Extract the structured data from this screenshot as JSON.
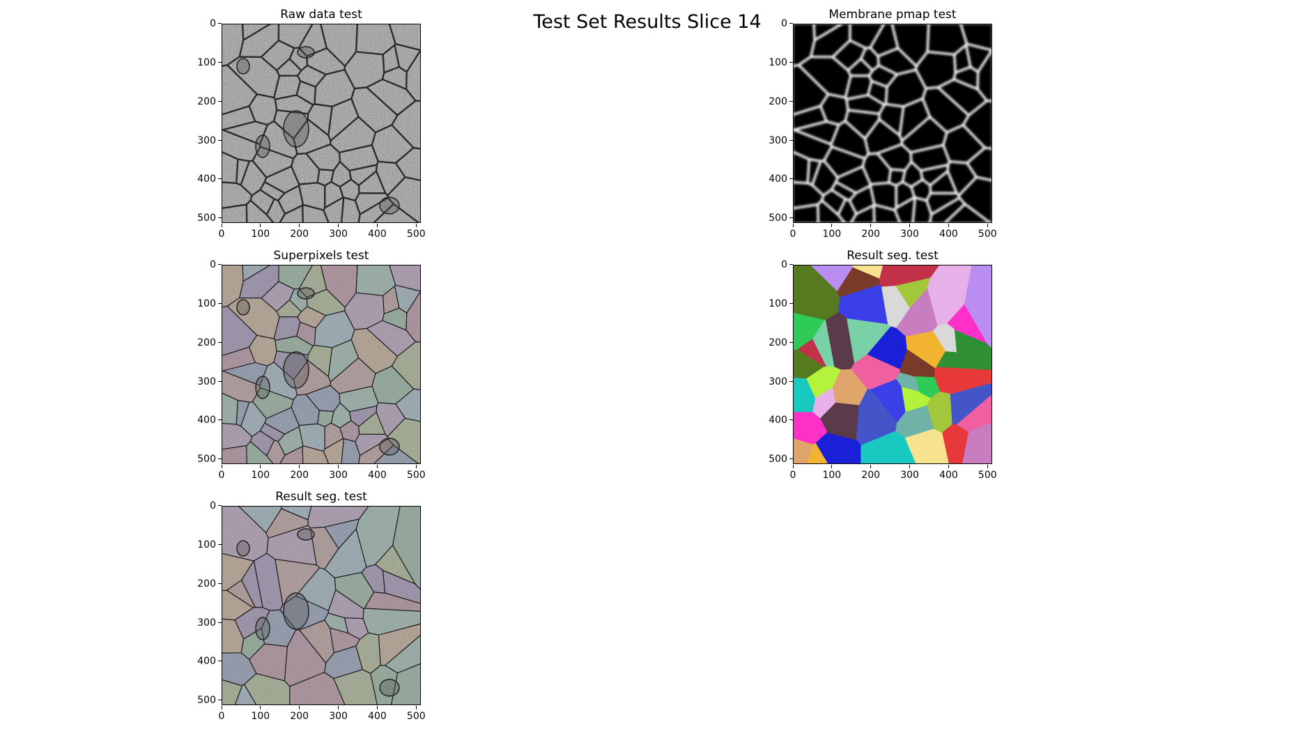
{
  "figure": {
    "title": "Test Set Results Slice 14"
  },
  "panels": [
    {
      "id": "raw",
      "title": "Raw data test"
    },
    {
      "id": "pmap",
      "title": "Membrane pmap test"
    },
    {
      "id": "superpixels",
      "title": "Superpixels test"
    },
    {
      "id": "segcolor",
      "title": "Result seg. test"
    },
    {
      "id": "segoverlay",
      "title": "Result seg. test"
    }
  ],
  "axes": {
    "yticks": [
      "0",
      "100",
      "200",
      "300",
      "400",
      "500"
    ],
    "xticks": [
      "0",
      "100",
      "200",
      "300",
      "400",
      "500"
    ]
  },
  "colors": {
    "segment_palette": [
      "#e8393a",
      "#2ecc57",
      "#b98ef0",
      "#4355c9",
      "#c77dc0",
      "#17c9c1",
      "#f2b430",
      "#2e8f34",
      "#1a1fd8",
      "#b4f33b",
      "#f7e38f",
      "#5b3b4a",
      "#ff30c8",
      "#7ad1a8",
      "#e0a56b",
      "#d9d9d9",
      "#a3c73a",
      "#c2304a",
      "#6fb3a8",
      "#3b3fe8",
      "#f060a0",
      "#7a3a2a",
      "#e8b0e8",
      "#557a20"
    ],
    "overlay_palette": [
      "#8c7aa8",
      "#7ea58c",
      "#b08a8a",
      "#8ca8b8",
      "#a88cb0",
      "#9aa87a",
      "#b89a7a",
      "#7a8cb0",
      "#a87a90",
      "#88b0a0"
    ]
  }
}
